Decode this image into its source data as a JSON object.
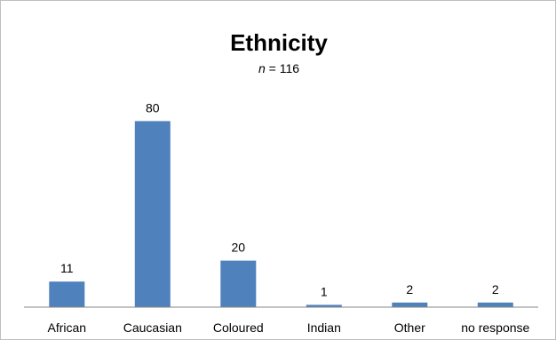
{
  "chart_data": {
    "type": "bar",
    "title": "Ethnicity",
    "subtitle": {
      "italic_part": "n",
      "rest": " = 116"
    },
    "categories": [
      "African",
      "Caucasian",
      "Coloured",
      "Indian",
      "Other",
      "no response"
    ],
    "values": [
      11,
      80,
      20,
      1,
      2,
      2
    ],
    "xlabel": "",
    "ylabel": "",
    "ylim": [
      0,
      100
    ],
    "grid": false,
    "legend": "none",
    "bar_color": "#4f81bd",
    "axis_color": "#868686"
  }
}
